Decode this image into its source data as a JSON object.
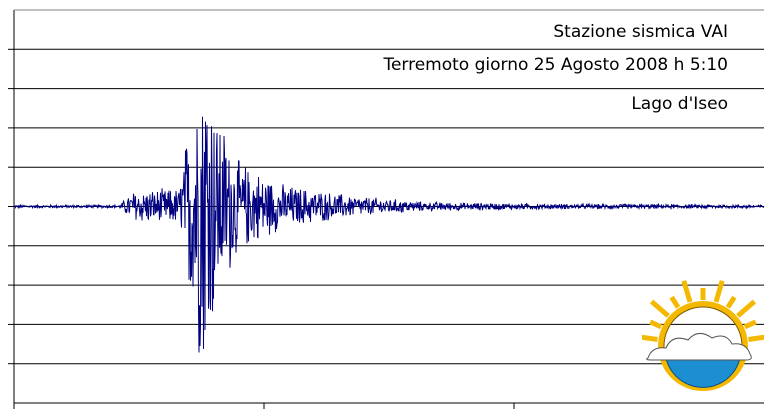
{
  "chart_data": {
    "type": "line",
    "title_lines": [
      "Stazione sismica VAI",
      "Terremoto giorno 25 Agosto 2008 h 5:10",
      "Lago d'Iseo"
    ],
    "xlabel": "",
    "ylabel": "",
    "grid": true,
    "horizontal_gridlines": 10,
    "vertical_ticks": 3,
    "series": [
      {
        "color": "#000080",
        "envelope": [
          {
            "t": 0.0,
            "amp": 0.008
          },
          {
            "t": 0.14,
            "amp": 0.008
          },
          {
            "t": 0.16,
            "amp": 0.09
          },
          {
            "t": 0.22,
            "amp": 0.1
          },
          {
            "t": 0.245,
            "amp": 0.8
          },
          {
            "t": 0.255,
            "amp": 0.95
          },
          {
            "t": 0.27,
            "amp": 0.55
          },
          {
            "t": 0.3,
            "amp": 0.25
          },
          {
            "t": 0.36,
            "amp": 0.12
          },
          {
            "t": 0.45,
            "amp": 0.06
          },
          {
            "t": 0.55,
            "amp": 0.025
          },
          {
            "t": 0.7,
            "amp": 0.015
          },
          {
            "t": 1.0,
            "amp": 0.01
          }
        ]
      }
    ]
  },
  "logo": {
    "name": "station-logo",
    "colors": {
      "sun": "#f5b800",
      "ring": "#f5b800",
      "water": "#1b8fd1",
      "cloud": "#ffffff"
    }
  }
}
